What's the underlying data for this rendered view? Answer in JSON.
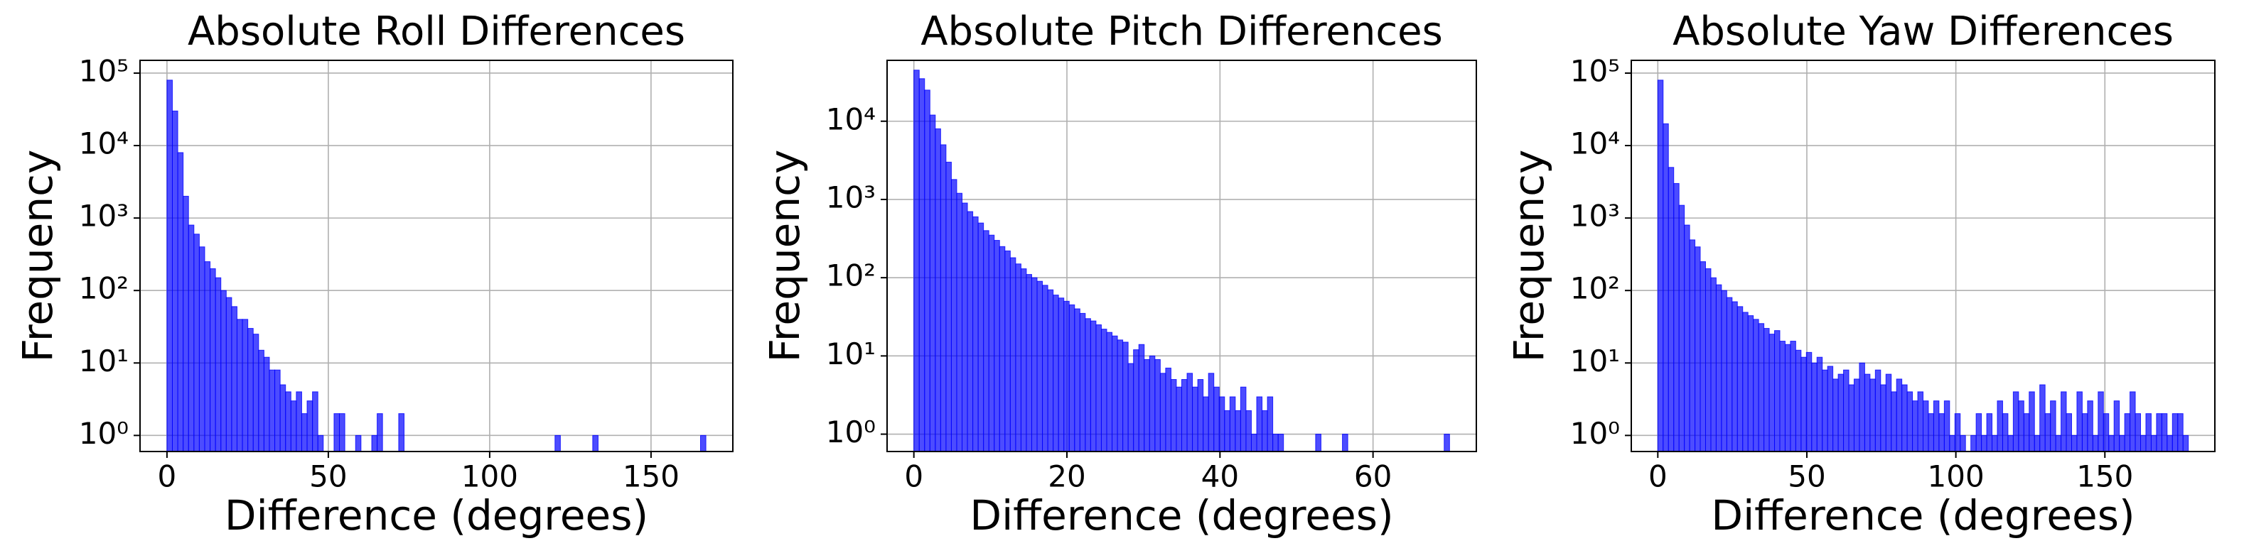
{
  "chart_data": [
    {
      "type": "histogram",
      "title": "Absolute Roll Differences",
      "xlabel": "Difference (degrees)",
      "ylabel": "Frequency",
      "log_y": true,
      "grid": true,
      "color": "#0000ff",
      "bins": [
        0,
        1.67,
        3.34,
        5.01,
        6.68,
        8.35,
        10.02,
        11.69,
        13.36,
        15.03,
        16.7,
        18.37,
        20.04,
        21.71,
        23.38,
        25.05,
        26.72,
        28.39,
        30.06,
        31.73,
        33.4,
        35.07,
        36.74,
        38.41,
        40.08,
        41.75,
        43.42,
        45.09,
        46.76,
        48.43,
        50.1,
        51.77,
        53.44,
        55.11,
        56.78,
        58.45,
        60.12,
        61.79,
        63.46,
        65.13,
        66.8,
        68.47,
        70.14,
        71.81,
        73.48,
        75.15,
        76.82,
        78.49,
        80.16,
        81.83,
        83.5,
        85.17,
        86.84,
        88.51,
        90.18,
        91.85,
        93.52,
        95.19,
        96.86,
        98.53,
        100.2,
        101.87,
        103.54,
        105.21,
        106.88,
        108.55,
        110.22,
        111.89,
        113.56,
        115.23,
        116.9,
        118.57,
        120.24,
        121.91,
        123.58,
        125.25,
        126.92,
        128.59,
        130.26,
        131.93,
        133.6,
        135.27,
        136.94,
        138.61,
        140.28,
        141.95,
        143.62,
        145.29,
        146.96,
        148.63,
        150.3,
        151.97,
        153.64,
        155.31,
        156.98,
        158.65,
        160.32,
        161.99,
        163.66,
        165.33,
        167
      ],
      "values": [
        80000,
        30000,
        8000,
        2000,
        800,
        600,
        400,
        250,
        200,
        150,
        100,
        80,
        60,
        40,
        40,
        30,
        25,
        15,
        12,
        8,
        8,
        5,
        4,
        3,
        4,
        2,
        3,
        4,
        1,
        0,
        0,
        2,
        2,
        0,
        0,
        1,
        0,
        0,
        1,
        2,
        0,
        0,
        0,
        2,
        0,
        0,
        0,
        0,
        0,
        0,
        0,
        0,
        0,
        0,
        0,
        0,
        0,
        0,
        0,
        0,
        0,
        0,
        0,
        0,
        0,
        0,
        0,
        0,
        0,
        0,
        0,
        0,
        1,
        0,
        0,
        0,
        0,
        0,
        0,
        1,
        0,
        0,
        0,
        0,
        0,
        0,
        0,
        0,
        0,
        0,
        0,
        0,
        0,
        0,
        0,
        0,
        0,
        0,
        0,
        1
      ],
      "xlim": [
        -8.35,
        175.35
      ],
      "xticks": [
        0,
        50,
        100,
        150
      ],
      "ylim": [
        0.6,
        150000
      ],
      "yticks": [
        {
          "value": 1,
          "label": "10⁰"
        },
        {
          "value": 10,
          "label": "10¹"
        },
        {
          "value": 100,
          "label": "10²"
        },
        {
          "value": 1000,
          "label": "10³"
        },
        {
          "value": 10000,
          "label": "10⁴"
        },
        {
          "value": 100000,
          "label": "10⁵"
        }
      ]
    },
    {
      "type": "histogram",
      "title": "Absolute Pitch Differences",
      "xlabel": "Difference (degrees)",
      "ylabel": "Frequency",
      "log_y": true,
      "grid": true,
      "color": "#0000ff",
      "bins": [
        0,
        0.7,
        1.4,
        2.1,
        2.8,
        3.5,
        4.2,
        4.9,
        5.6,
        6.3,
        7,
        7.7,
        8.4,
        9.1,
        9.8,
        10.5,
        11.2,
        11.9,
        12.6,
        13.3,
        14,
        14.7,
        15.4,
        16.1,
        16.8,
        17.5,
        18.2,
        18.9,
        19.6,
        20.3,
        21,
        21.7,
        22.4,
        23.1,
        23.8,
        24.5,
        25.2,
        25.9,
        26.6,
        27.3,
        28,
        28.7,
        29.4,
        30.1,
        30.8,
        31.5,
        32.2,
        32.9,
        33.6,
        34.3,
        35,
        35.7,
        36.4,
        37.1,
        37.8,
        38.5,
        39.2,
        39.9,
        40.6,
        41.3,
        42,
        42.7,
        43.4,
        44.1,
        44.8,
        45.5,
        46.2,
        46.9,
        47.6,
        48.3,
        49,
        49.7,
        50.4,
        51.1,
        51.8,
        52.5,
        53.2,
        53.9,
        54.6,
        55.3,
        56,
        56.7,
        57.4,
        58.1,
        58.8,
        59.5,
        60.2,
        60.9,
        61.6,
        62.3,
        63,
        63.7,
        64.4,
        65.1,
        65.8,
        66.5,
        67.2,
        67.9,
        68.6,
        69.3,
        70
      ],
      "values": [
        45000,
        35000,
        25000,
        12000,
        8000,
        5000,
        3000,
        1800,
        1200,
        900,
        700,
        600,
        500,
        400,
        350,
        300,
        250,
        220,
        180,
        150,
        130,
        110,
        100,
        90,
        80,
        70,
        60,
        55,
        50,
        45,
        40,
        35,
        30,
        28,
        25,
        22,
        20,
        18,
        16,
        15,
        8,
        12,
        14,
        9,
        10,
        9,
        6,
        7,
        5,
        4,
        5,
        6,
        4,
        5,
        3,
        6,
        4,
        3,
        2,
        3,
        2,
        4,
        2,
        1,
        3,
        2,
        3,
        1,
        1,
        0,
        0,
        0,
        0,
        0,
        0,
        1,
        0,
        0,
        0,
        0,
        1,
        0,
        0,
        0,
        0,
        0,
        0,
        0,
        0,
        0,
        0,
        0,
        0,
        0,
        0,
        0,
        0,
        0,
        0,
        1
      ],
      "xlim": [
        -3.5,
        73.5
      ],
      "xticks": [
        0,
        20,
        40,
        60
      ],
      "ylim": [
        0.6,
        60000
      ],
      "yticks": [
        {
          "value": 1,
          "label": "10⁰"
        },
        {
          "value": 10,
          "label": "10¹"
        },
        {
          "value": 100,
          "label": "10²"
        },
        {
          "value": 1000,
          "label": "10³"
        },
        {
          "value": 10000,
          "label": "10⁴"
        }
      ]
    },
    {
      "type": "histogram",
      "title": "Absolute Yaw Differences",
      "xlabel": "Difference (degrees)",
      "ylabel": "Frequency",
      "log_y": true,
      "grid": true,
      "color": "#0000ff",
      "bins": [
        0,
        1.78,
        3.56,
        5.34,
        7.12,
        8.9,
        10.68,
        12.46,
        14.24,
        16.02,
        17.8,
        19.58,
        21.36,
        23.14,
        24.92,
        26.7,
        28.48,
        30.26,
        32.04,
        33.82,
        35.6,
        37.38,
        39.16,
        40.94,
        42.72,
        44.5,
        46.28,
        48.06,
        49.84,
        51.62,
        53.4,
        55.18,
        56.96,
        58.74,
        60.52,
        62.3,
        64.08,
        65.86,
        67.64,
        69.42,
        71.2,
        72.98,
        74.76,
        76.54,
        78.32,
        80.1,
        81.88,
        83.66,
        85.44,
        87.22,
        89,
        90.78,
        92.56,
        94.34,
        96.12,
        97.9,
        99.68,
        101.46,
        103.24,
        105.02,
        106.8,
        108.58,
        110.36,
        112.14,
        113.92,
        115.7,
        117.48,
        119.26,
        121.04,
        122.82,
        124.6,
        126.38,
        128.16,
        129.94,
        131.72,
        133.5,
        135.28,
        137.06,
        138.84,
        140.62,
        142.4,
        144.18,
        145.96,
        147.74,
        149.52,
        151.3,
        153.08,
        154.86,
        156.64,
        158.42,
        160.2,
        161.98,
        163.76,
        165.54,
        167.32,
        169.1,
        170.88,
        172.66,
        174.44,
        176.22,
        178
      ],
      "values": [
        80000,
        20000,
        5000,
        3000,
        1500,
        800,
        500,
        400,
        250,
        200,
        150,
        120,
        100,
        80,
        70,
        60,
        50,
        45,
        40,
        35,
        30,
        25,
        28,
        20,
        18,
        20,
        15,
        12,
        14,
        10,
        12,
        8,
        9,
        6,
        7,
        8,
        5,
        6,
        10,
        7,
        6,
        8,
        5,
        7,
        4,
        6,
        5,
        4,
        3,
        4,
        3,
        2,
        3,
        2,
        3,
        1,
        2,
        1,
        0,
        1,
        2,
        1,
        2,
        1,
        3,
        2,
        1,
        4,
        3,
        2,
        4,
        1,
        5,
        2,
        3,
        1,
        4,
        2,
        1,
        4,
        2,
        3,
        1,
        4,
        2,
        1,
        3,
        1,
        2,
        4,
        2,
        1,
        2,
        1,
        2,
        2,
        1,
        2,
        2,
        1
      ],
      "xlim": [
        -8.9,
        186.9
      ],
      "xticks": [
        0,
        50,
        100,
        150
      ],
      "ylim": [
        0.6,
        150000
      ],
      "yticks": [
        {
          "value": 1,
          "label": "10⁰"
        },
        {
          "value": 10,
          "label": "10¹"
        },
        {
          "value": 100,
          "label": "10²"
        },
        {
          "value": 1000,
          "label": "10³"
        },
        {
          "value": 10000,
          "label": "10⁴"
        },
        {
          "value": 100000,
          "label": "10⁵"
        }
      ]
    }
  ]
}
